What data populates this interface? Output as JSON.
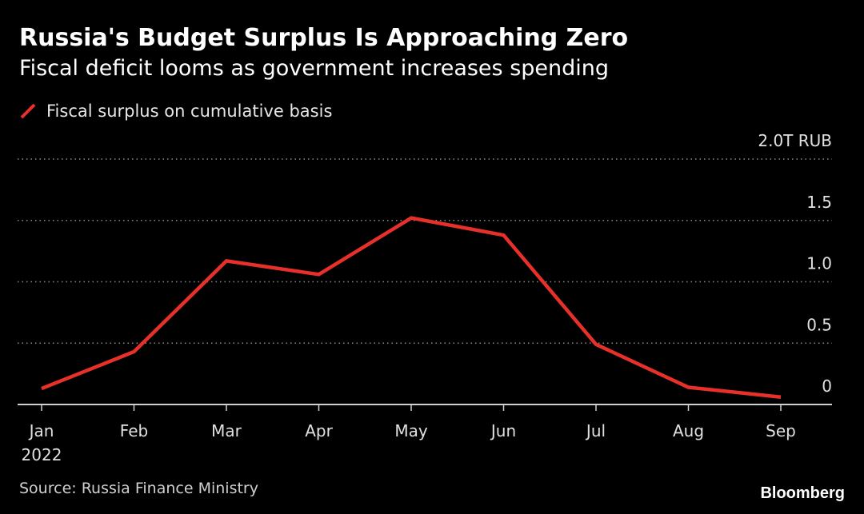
{
  "colors": {
    "background": "#000000",
    "series": "#e8302a",
    "grid": "#8a8a8a",
    "axis": "#cfcfcf",
    "text": "#ffffff"
  },
  "title": "Russia's Budget Surplus Is Approaching Zero",
  "subtitle": "Fiscal deficit looms as government increases spending",
  "legend": {
    "label": "Fiscal surplus on cumulative basis",
    "icon": "red-diagonal-line-icon"
  },
  "source": "Source: Russia Finance Ministry",
  "brand": "Bloomberg",
  "chart_data": {
    "type": "line",
    "title": "Russia's Budget Surplus Is Approaching Zero",
    "subtitle": "Fiscal deficit looms as government increases spending",
    "xlabel": "",
    "ylabel": "",
    "unit": "T RUB",
    "categories": [
      "Jan",
      "Feb",
      "Mar",
      "Apr",
      "May",
      "Jun",
      "Jul",
      "Aug",
      "Sep"
    ],
    "x_tick_labels": [
      "Jan",
      "Feb",
      "Mar",
      "Apr",
      "May",
      "Jun",
      "Jul",
      "Aug",
      "Sep"
    ],
    "x_year_label": "2022",
    "series": [
      {
        "name": "Fiscal surplus on cumulative basis",
        "values": [
          0.13,
          0.43,
          1.17,
          1.06,
          1.52,
          1.38,
          0.49,
          0.14,
          0.06
        ]
      }
    ],
    "ylim": [
      0,
      2.0
    ],
    "y_ticks": [
      0,
      0.5,
      1.0,
      1.5,
      2.0
    ],
    "y_tick_labels": [
      "0",
      "0.5",
      "1.0",
      "1.5",
      "2.0T RUB"
    ],
    "grid": true,
    "grid_style": "dotted-horizontal",
    "y_axis_side": "right",
    "legend_position": "top-left"
  }
}
